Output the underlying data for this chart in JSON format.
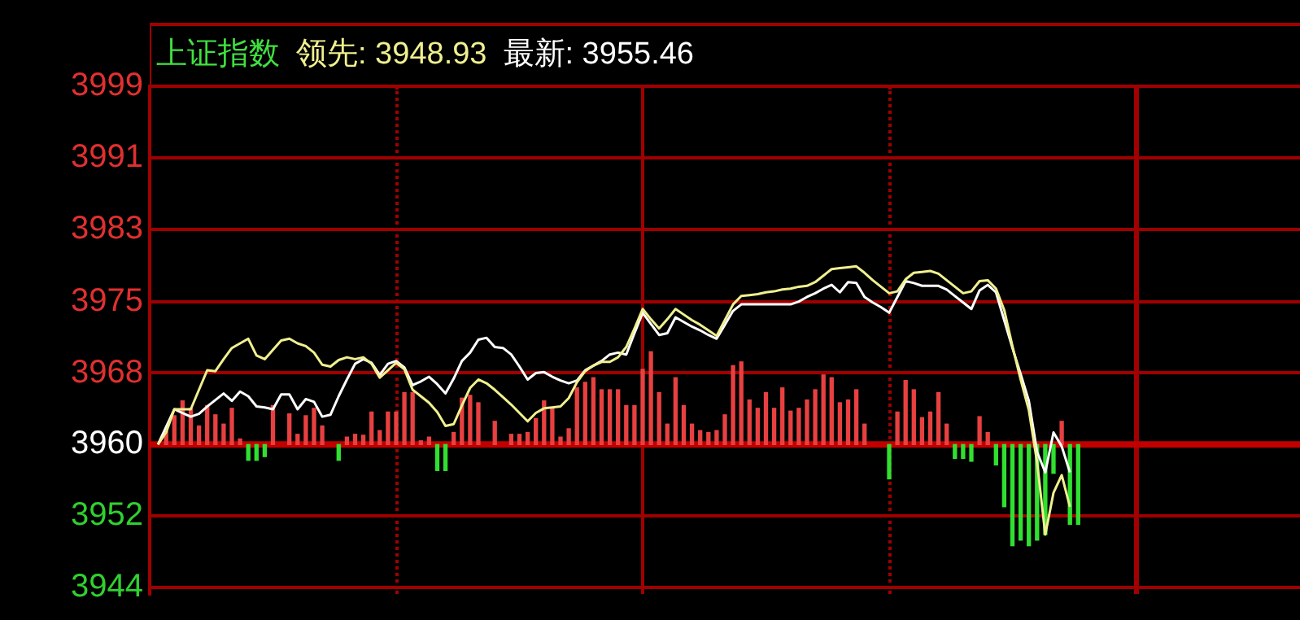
{
  "chart_data": {
    "type": "line",
    "title": "上证指数",
    "marker": "none",
    "grid": "y",
    "tick_labels": "y",
    "categories": [
      null,
      null,
      null,
      null,
      null,
      null,
      null,
      null,
      null,
      null,
      null,
      null,
      null,
      null,
      null,
      null,
      null,
      null,
      null,
      null,
      null,
      null,
      null,
      null,
      null,
      null,
      null,
      null,
      null,
      null,
      null,
      null,
      null,
      null,
      null,
      null,
      null,
      null,
      null,
      null,
      null,
      null,
      null,
      null,
      null,
      null,
      null,
      null,
      null,
      null,
      null,
      null,
      null,
      null,
      null,
      null,
      null,
      null,
      null,
      null,
      null,
      null,
      null,
      null,
      null,
      null,
      null,
      null,
      null,
      null,
      null,
      null,
      null,
      null,
      null,
      null,
      null,
      null,
      null,
      null,
      null,
      null,
      null,
      null,
      null,
      null,
      null,
      null,
      null,
      null,
      null,
      null,
      null,
      null,
      null,
      null,
      null,
      null,
      null,
      null,
      null,
      null,
      null,
      null,
      null,
      null,
      null,
      null,
      null,
      null,
      null,
      null,
      null,
      null,
      null,
      null,
      null,
      null,
      null,
      null,
      null,
      null,
      null,
      null,
      null,
      null,
      null,
      null,
      null,
      null,
      null,
      null,
      null,
      null,
      null,
      null,
      null,
      null,
      null,
      null,
      null
    ],
    "ylim": [
      3943.8,
      3998.5
    ],
    "yticks": [
      {
        "value": 3944.5,
        "label": "3944"
      },
      {
        "value": 3952.2,
        "label": "3952"
      },
      {
        "value": 3959.9,
        "label": "3960"
      },
      {
        "value": 3967.6,
        "label": "3968"
      },
      {
        "value": 3975.3,
        "label": "3975"
      },
      {
        "value": 3983.1,
        "label": "3983"
      },
      {
        "value": 3990.8,
        "label": "3991"
      },
      {
        "value": 3998.5,
        "label": "3999"
      }
    ],
    "ref_lines": [
      {
        "axis": "y",
        "value": 3959.9,
        "color": "#c00000"
      }
    ],
    "series": [
      {
        "type": "bar",
        "color": "#e84040",
        "values": [
          null,
          null,
          1.4,
          3.1,
          4.7,
          3.9,
          2.0,
          4.2,
          3.2,
          2.2,
          3.9,
          0.6,
          null,
          null,
          null,
          4.2,
          null,
          3.3,
          1.1,
          3.1,
          3.9,
          2.0,
          null,
          null,
          0.8,
          1.1,
          1.0,
          3.5,
          1.5,
          3.5,
          3.5,
          5.6,
          5.6,
          0.4,
          0.8,
          null,
          null,
          1.3,
          5.0,
          5.3,
          4.5,
          null,
          2.5,
          null,
          1.1,
          1.1,
          1.3,
          2.8,
          4.7,
          3.9,
          0.8,
          1.7,
          6.1,
          6.7,
          7.2,
          5.9,
          5.9,
          5.9,
          4.2,
          4.2,
          8.1,
          10.0,
          5.6,
          2.2,
          7.2,
          4.2,
          2.2,
          1.5,
          1.3,
          1.5,
          3.2,
          8.5,
          8.9,
          4.8,
          3.9,
          5.6,
          3.9,
          6.1,
          3.6,
          3.9,
          4.8,
          5.9,
          7.5,
          7.2,
          4.5,
          4.8,
          5.9,
          2.2,
          null,
          null,
          null,
          3.5,
          6.9,
          5.9,
          2.9,
          3.5,
          5.6,
          2.2,
          null,
          null,
          null,
          3.0,
          1.3,
          null,
          null,
          null,
          null,
          null,
          null,
          null,
          null,
          2.5,
          null,
          null,
          null,
          null,
          null,
          null,
          null,
          null,
          null,
          null,
          null,
          null,
          null,
          null,
          null,
          null,
          null,
          null,
          null,
          null,
          null,
          null,
          null,
          null,
          null,
          null,
          null,
          null,
          null
        ],
        "base": [
          null,
          null,
          3959.9,
          3959.9,
          3959.9,
          3959.9,
          3959.9,
          3959.9,
          3959.9,
          3959.9,
          3959.9,
          3959.9,
          null,
          null,
          null,
          3959.9,
          null,
          3959.9,
          3959.9,
          3959.9,
          3959.9,
          3959.9,
          null,
          null,
          3959.9,
          3959.9,
          3959.9,
          3959.9,
          3959.9,
          3959.9,
          3959.9,
          3959.9,
          3959.9,
          3959.9,
          3959.9,
          null,
          null,
          3959.9,
          3959.9,
          3959.9,
          3959.9,
          null,
          3959.9,
          null,
          3959.9,
          3959.9,
          3959.9,
          3959.9,
          3959.9,
          3959.9,
          3959.9,
          3959.9,
          3959.9,
          3959.9,
          3959.9,
          3959.9,
          3959.9,
          3959.9,
          3959.9,
          3959.9,
          3959.9,
          3959.9,
          3959.9,
          3959.9,
          3959.9,
          3959.9,
          3959.9,
          3959.9,
          3959.9,
          3959.9,
          3959.9,
          3959.9,
          3959.9,
          3959.9,
          3959.9,
          3959.9,
          3959.9,
          3959.9,
          3959.9,
          3959.9,
          3959.9,
          3959.9,
          3959.9,
          3959.9,
          3959.9,
          3959.9,
          3959.9,
          3959.9,
          null,
          null,
          null,
          3959.9,
          3959.9,
          3959.9,
          3959.9,
          3959.9,
          3959.9,
          3959.9,
          null,
          null,
          null,
          3959.9,
          3959.9,
          null,
          null,
          null,
          null,
          null,
          null,
          null,
          null,
          3959.9,
          null,
          null,
          null,
          null,
          null,
          null,
          null,
          null,
          null,
          null,
          null,
          null,
          null,
          null,
          null,
          null,
          null,
          null,
          null,
          null,
          null,
          null,
          null,
          null,
          null,
          null,
          null,
          null,
          null
        ]
      },
      {
        "type": "bar",
        "color": "#30e030",
        "values": [
          null,
          null,
          null,
          null,
          null,
          null,
          null,
          null,
          null,
          null,
          null,
          null,
          -1.7,
          -1.7,
          -1.3,
          null,
          null,
          null,
          null,
          null,
          null,
          null,
          null,
          -1.7,
          null,
          null,
          null,
          null,
          null,
          null,
          null,
          null,
          null,
          null,
          null,
          -2.8,
          -2.8,
          null,
          null,
          null,
          null,
          null,
          null,
          null,
          null,
          null,
          null,
          null,
          null,
          null,
          null,
          null,
          null,
          null,
          null,
          null,
          null,
          null,
          null,
          null,
          null,
          null,
          null,
          null,
          null,
          null,
          null,
          null,
          null,
          null,
          null,
          null,
          null,
          null,
          null,
          null,
          null,
          null,
          null,
          null,
          null,
          null,
          null,
          null,
          null,
          null,
          null,
          null,
          null,
          null,
          -3.7,
          null,
          null,
          null,
          null,
          null,
          null,
          null,
          -1.5,
          -1.5,
          -1.8,
          null,
          null,
          -2.2,
          -6.7,
          -10.9,
          -10.3,
          -10.9,
          -10.3,
          -9.7,
          -3.1,
          null,
          -8.6,
          -8.6,
          null,
          null,
          null,
          null,
          null,
          null,
          null,
          null,
          null,
          null,
          null,
          null,
          null,
          null,
          null,
          null,
          null,
          null,
          null,
          null,
          null,
          null,
          null,
          null,
          null,
          null,
          null
        ],
        "base": [
          null,
          null,
          null,
          null,
          null,
          null,
          null,
          null,
          null,
          null,
          null,
          null,
          3959.9,
          3959.9,
          3959.9,
          null,
          null,
          null,
          null,
          null,
          null,
          null,
          null,
          3959.9,
          null,
          null,
          null,
          null,
          null,
          null,
          null,
          null,
          null,
          null,
          null,
          3959.9,
          3959.9,
          null,
          null,
          null,
          null,
          null,
          null,
          null,
          null,
          null,
          null,
          null,
          null,
          null,
          null,
          null,
          null,
          null,
          null,
          null,
          null,
          null,
          null,
          null,
          null,
          null,
          null,
          null,
          null,
          null,
          null,
          null,
          null,
          null,
          null,
          null,
          null,
          null,
          null,
          null,
          null,
          null,
          null,
          null,
          null,
          null,
          null,
          null,
          null,
          null,
          null,
          null,
          null,
          null,
          3959.9,
          null,
          null,
          null,
          null,
          null,
          null,
          null,
          3959.9,
          3959.9,
          3959.9,
          null,
          null,
          3959.9,
          3959.9,
          3959.9,
          3959.9,
          3959.9,
          3959.9,
          3959.9,
          3959.9,
          null,
          3959.9,
          3959.9,
          null,
          null,
          null,
          null,
          null,
          null,
          null,
          null,
          null,
          null,
          null,
          null,
          null,
          null,
          null,
          null,
          null,
          null,
          null,
          null,
          null,
          null,
          null,
          null,
          null,
          null,
          null
        ]
      },
      {
        "name": "领先: 3948.93",
        "color": "#f0f090",
        "values": [
          null,
          3959.9,
          3961.2,
          3963.7,
          3963.7,
          3963.7,
          3965.8,
          3967.9,
          3967.8,
          3969.1,
          3970.3,
          3970.8,
          3971.3,
          3969.5,
          3969.1,
          3970.1,
          3971.1,
          3971.3,
          3970.8,
          3970.5,
          3969.8,
          3968.5,
          3968.3,
          3969.0,
          3969.3,
          3969.1,
          3969.3,
          3968.6,
          3967.1,
          3967.9,
          3968.7,
          3968.0,
          3965.8,
          3965.1,
          3964.4,
          3963.4,
          3961.9,
          3962.1,
          3964.1,
          3966.0,
          3966.9,
          3966.5,
          3965.8,
          3965.0,
          3964.2,
          3963.3,
          3962.4,
          3963.3,
          3963.8,
          3963.9,
          3964.0,
          3964.9,
          3966.6,
          3967.8,
          3968.4,
          3968.8,
          3968.8,
          3969.3,
          3970.4,
          3972.4,
          3974.5,
          3973.4,
          3972.4,
          3973.4,
          3974.5,
          3973.9,
          3973.3,
          3972.8,
          3972.2,
          3971.6,
          3973.3,
          3975.0,
          3975.9,
          3976.0,
          3976.1,
          3976.3,
          3976.4,
          3976.6,
          3976.7,
          3976.9,
          3977.0,
          3977.4,
          3978.1,
          3978.8,
          3978.9,
          3979.0,
          3979.1,
          3978.4,
          3977.6,
          3976.9,
          3976.2,
          3976.4,
          3977.7,
          3978.4,
          3978.5,
          3978.6,
          3978.3,
          3977.6,
          3976.9,
          3976.2,
          3976.4,
          3977.5,
          3977.6,
          3976.7,
          3974.4,
          3970.5,
          3966.9,
          3963.6,
          3958.0,
          3950.2,
          3954.7,
          3956.6,
          3953.2,
          null,
          null,
          null,
          null,
          null,
          null,
          null,
          null,
          null,
          null,
          null,
          null,
          null,
          null,
          null,
          null,
          null,
          null,
          null,
          null,
          null,
          null,
          null,
          null,
          null,
          null,
          null,
          null
        ]
      },
      {
        "name": "最新: 3955.46",
        "color": "#ffffff",
        "values": [
          null,
          3959.9,
          3961.8,
          3963.7,
          3963.3,
          3962.9,
          3963.2,
          3964.0,
          3964.7,
          3965.4,
          3964.6,
          3965.6,
          3965.1,
          3964.0,
          3963.9,
          3963.7,
          3965.3,
          3965.3,
          3963.7,
          3964.8,
          3964.5,
          3962.9,
          3963.1,
          3965.1,
          3966.9,
          3968.6,
          3969.1,
          3968.7,
          3967.4,
          3968.6,
          3968.9,
          3968.2,
          3966.3,
          3966.7,
          3967.2,
          3966.4,
          3965.4,
          3967.0,
          3968.9,
          3969.8,
          3971.2,
          3971.4,
          3970.4,
          3970.3,
          3969.6,
          3968.3,
          3966.9,
          3967.6,
          3967.7,
          3967.2,
          3966.8,
          3966.5,
          3966.8,
          3967.9,
          3968.4,
          3968.9,
          3969.6,
          3969.8,
          3969.6,
          3971.9,
          3974.1,
          3972.9,
          3971.7,
          3971.9,
          3973.6,
          3973.1,
          3972.6,
          3972.2,
          3971.7,
          3971.3,
          3972.8,
          3974.3,
          3975.0,
          3975.0,
          3975.0,
          3975.0,
          3975.0,
          3975.0,
          3975.0,
          3975.3,
          3975.8,
          3976.2,
          3976.7,
          3977.1,
          3976.3,
          3977.4,
          3977.3,
          3975.8,
          3975.2,
          3974.7,
          3974.1,
          3975.8,
          3977.5,
          3977.3,
          3977.0,
          3977.0,
          3977.0,
          3976.6,
          3975.9,
          3975.2,
          3974.5,
          3976.5,
          3977.1,
          3976.3,
          3973.3,
          3970.3,
          3967.5,
          3964.6,
          3959.1,
          3956.9,
          3961.2,
          3959.7,
          3956.9,
          null,
          null,
          null,
          null,
          null,
          null,
          null,
          null,
          null,
          null,
          null,
          null,
          null,
          null,
          null,
          null,
          null,
          null,
          null,
          null,
          null,
          null,
          null,
          null,
          null,
          null,
          null,
          null
        ]
      }
    ]
  }
}
